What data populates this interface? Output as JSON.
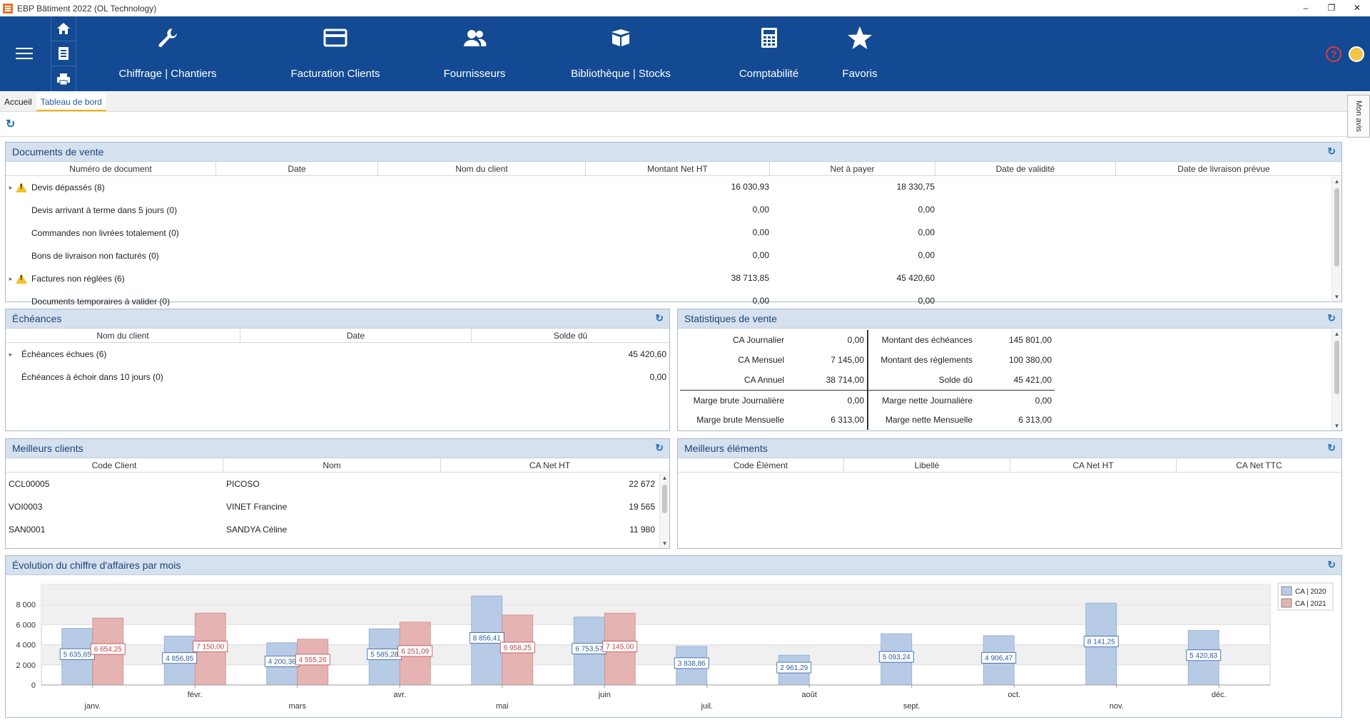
{
  "app_title": "EBP Bâtiment 2022 (OL Technology)",
  "window_controls": [
    "–",
    "❐",
    "✕"
  ],
  "ribbon": {
    "modules": [
      {
        "label": "Chiffrage | Chantiers",
        "icon": "wrench-icon"
      },
      {
        "label": "Facturation Clients",
        "icon": "credit-card-icon"
      },
      {
        "label": "Fournisseurs",
        "icon": "users-icon"
      },
      {
        "label": "Bibliothèque |  Stocks",
        "icon": "box-icon"
      },
      {
        "label": "Comptabilité",
        "icon": "calculator-icon"
      },
      {
        "label": "Favoris",
        "icon": "star-icon"
      }
    ]
  },
  "tabs": [
    "Accueil",
    "Tableau de bord"
  ],
  "mon_avis": "Mon avis",
  "documents": {
    "title": "Documents de vente",
    "columns": [
      "Numéro de document",
      "Date",
      "Nom du client",
      "Montant Net HT",
      "Net à payer",
      "Date de validité",
      "Date de livraison prévue"
    ],
    "rows": [
      {
        "label": "Devis dépassés (8)",
        "warn": true,
        "expand": true,
        "ht": "16 030,93",
        "net": "18 330,75"
      },
      {
        "label": "Devis arrivant à terme dans 5 jours (0)",
        "warn": false,
        "expand": false,
        "ht": "0,00",
        "net": "0,00"
      },
      {
        "label": "Commandes non livrées totalement (0)",
        "warn": false,
        "expand": false,
        "ht": "0,00",
        "net": "0,00"
      },
      {
        "label": "Bons de livraison non facturés (0)",
        "warn": false,
        "expand": false,
        "ht": "0,00",
        "net": "0,00"
      },
      {
        "label": "Factures non réglées (6)",
        "warn": true,
        "expand": true,
        "ht": "38 713,85",
        "net": "45 420,60"
      },
      {
        "label": "Documents temporaires à valider (0)",
        "warn": false,
        "expand": false,
        "ht": "0,00",
        "net": "0,00"
      }
    ]
  },
  "echeances": {
    "title": "Échéances",
    "columns": [
      "Nom du client",
      "Date",
      "Solde dû"
    ],
    "rows": [
      {
        "label": "Échéances échues (6)",
        "expand": true,
        "solde": "45 420,60"
      },
      {
        "label": "Échéances à échoir dans 10 jours (0)",
        "expand": false,
        "solde": "0,00"
      }
    ]
  },
  "stats": {
    "title": "Statistiques de vente",
    "left": [
      {
        "label": "CA Journalier",
        "value": "0,00"
      },
      {
        "label": "CA Mensuel",
        "value": "7 145,00"
      },
      {
        "label": "CA Annuel",
        "value": "38 714,00"
      }
    ],
    "right": [
      {
        "label": "Montant des échéances",
        "value": "145 801,00"
      },
      {
        "label": "Montant des règlements",
        "value": "100 380,00"
      },
      {
        "label": "Solde dû",
        "value": "45 421,00"
      }
    ],
    "marge_left": [
      {
        "label": "Marge brute Journalière",
        "value": "0,00"
      },
      {
        "label": "Marge brute Mensuelle",
        "value": "6 313,00"
      }
    ],
    "marge_right": [
      {
        "label": "Marge nette Journalière",
        "value": "0,00"
      },
      {
        "label": "Marge nette Mensuelle",
        "value": "6 313,00"
      }
    ]
  },
  "clients": {
    "title": "Meilleurs clients",
    "columns": [
      "Code Client",
      "Nom",
      "CA Net HT"
    ],
    "rows": [
      {
        "code": "CCL00005",
        "nom": "PICOSO",
        "ca": "22 672"
      },
      {
        "code": "VOI0003",
        "nom": "VINET Francine",
        "ca": "19 565"
      },
      {
        "code": "SAN0001",
        "nom": "SANDYA Céline",
        "ca": "11 980"
      }
    ]
  },
  "elements": {
    "title": "Meilleurs éléments",
    "columns": [
      "Code Élément",
      "Libellé",
      "CA Net HT",
      "CA Net TTC"
    ]
  },
  "chart_title": "Évolution du chiffre d'affaires par mois",
  "chart_data": {
    "type": "bar",
    "categories": [
      "janv.",
      "févr.",
      "mars",
      "avr.",
      "mai",
      "juin",
      "juil.",
      "août",
      "sept.",
      "oct.",
      "nov.",
      "déc."
    ],
    "series": [
      {
        "name": "CA | 2020",
        "color": "#b7cbe6",
        "values": [
          5635.65,
          4856.85,
          4200.36,
          5585.28,
          8856.41,
          6753.57,
          3838.86,
          2961.29,
          5093.24,
          4906.47,
          8141.25,
          5420.83
        ],
        "labels": [
          "5 635,65",
          "4 856,85",
          "4 200,36",
          "5 585,28",
          "8 856,41",
          "6 753,57",
          "3 838,86",
          "2 961,29",
          "5 093,24",
          "4 906,47",
          "8 141,25",
          "5 420,83"
        ]
      },
      {
        "name": "CA | 2021",
        "color": "#e6b3b3",
        "values": [
          6654.25,
          7150.0,
          4555.26,
          6251.09,
          6958.25,
          7145.0,
          null,
          null,
          null,
          null,
          null,
          null
        ],
        "labels": [
          "6 654,25",
          "7 150,00",
          "4 555,26",
          "6 251,09",
          "6 958,25",
          "7 145,00",
          "",
          "",
          "",
          "",
          "",
          ""
        ]
      }
    ],
    "yticks": [
      "0",
      "2 000",
      "4 000",
      "6 000",
      "8 000"
    ],
    "ylim": [
      0,
      10000
    ],
    "legend": "top-right",
    "grid": true
  }
}
